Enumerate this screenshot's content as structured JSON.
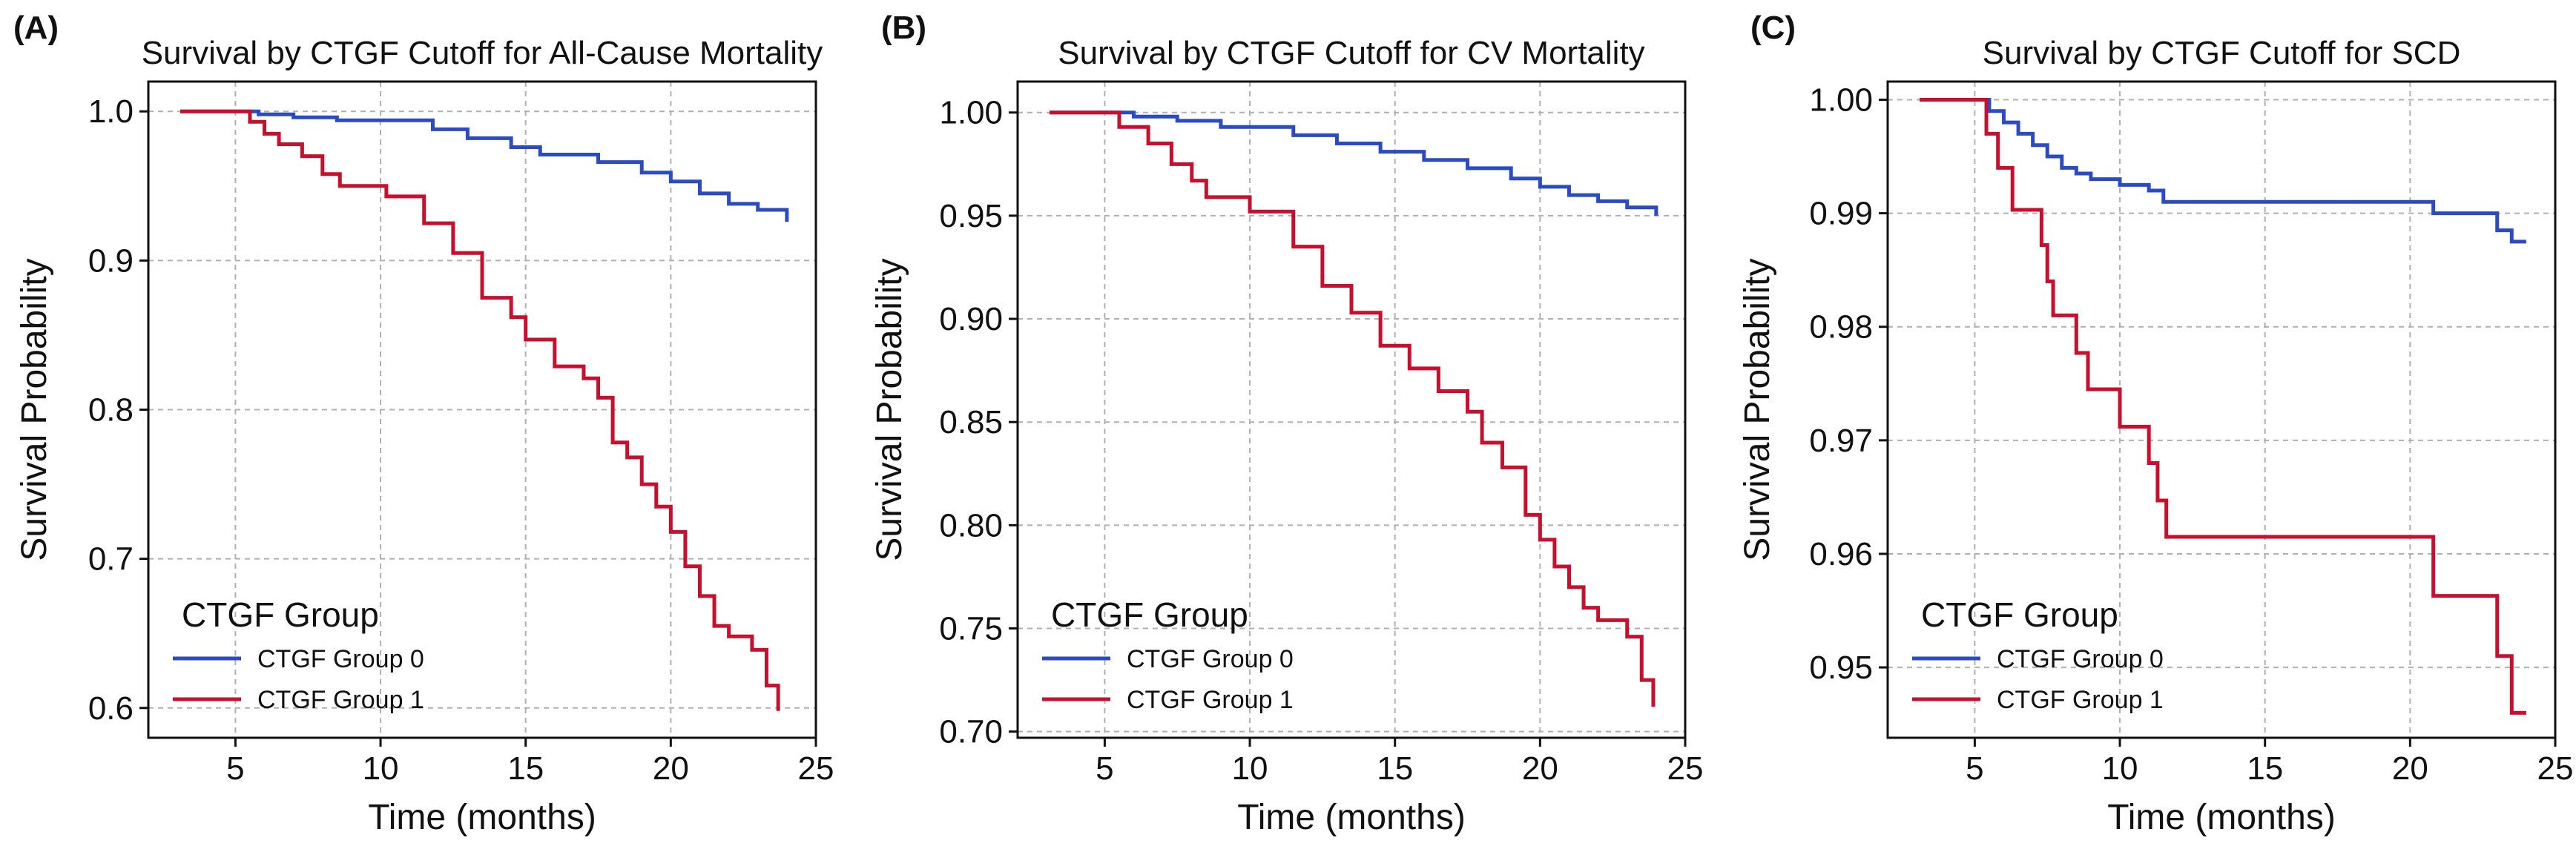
{
  "chart_data": [
    {
      "type": "line",
      "panel_label": "(A)",
      "title": "Survival by CTGF Cutoff for All-Cause Mortality",
      "xlabel": "Time (months)",
      "ylabel": "Survival Probability",
      "xlim": [
        2,
        25
      ],
      "ylim": [
        0.58,
        1.02
      ],
      "grid": true,
      "xticks": [
        5,
        10,
        15,
        20,
        25
      ],
      "xtick_labels": [
        "5",
        "10",
        "15",
        "20",
        "25"
      ],
      "yticks": [
        0.6,
        0.7,
        0.8,
        0.9,
        1.0
      ],
      "ytick_labels": [
        "0.6",
        "0.7",
        "0.8",
        "0.9",
        "1.0"
      ],
      "legend": {
        "title": "CTGF Group",
        "position": "lower-left"
      },
      "series": [
        {
          "name": "CTGF Group 0",
          "color": "#2b4bc2",
          "step": "post",
          "x": [
            3.1,
            5.8,
            7.0,
            8.5,
            11.8,
            13.0,
            14.5,
            15.5,
            17.5,
            19.0,
            20.0,
            21.0,
            22.0,
            23.0,
            24.0
          ],
          "y": [
            1.0,
            0.998,
            0.996,
            0.994,
            0.988,
            0.982,
            0.976,
            0.971,
            0.966,
            0.959,
            0.953,
            0.945,
            0.938,
            0.934,
            0.926
          ]
        },
        {
          "name": "CTGF Group 1",
          "color": "#c8102e",
          "step": "post",
          "x": [
            3.1,
            5.5,
            6.0,
            6.5,
            7.3,
            8.0,
            8.6,
            10.2,
            11.5,
            12.5,
            13.5,
            14.5,
            15.0,
            16.0,
            17.0,
            17.5,
            18.0,
            18.5,
            19.0,
            19.5,
            20.0,
            20.5,
            21.0,
            21.5,
            22.0,
            22.8,
            23.3,
            23.7
          ],
          "y": [
            1.0,
            0.993,
            0.985,
            0.978,
            0.97,
            0.958,
            0.95,
            0.943,
            0.925,
            0.905,
            0.875,
            0.862,
            0.847,
            0.829,
            0.821,
            0.808,
            0.778,
            0.768,
            0.75,
            0.735,
            0.718,
            0.695,
            0.675,
            0.655,
            0.648,
            0.639,
            0.615,
            0.598
          ]
        }
      ]
    },
    {
      "type": "line",
      "panel_label": "(B)",
      "title": "Survival by CTGF Cutoff for CV Mortality",
      "xlabel": "Time (months)",
      "ylabel": "Survival Probability",
      "xlim": [
        2,
        25
      ],
      "ylim": [
        0.697,
        1.015
      ],
      "grid": true,
      "xticks": [
        5,
        10,
        15,
        20,
        25
      ],
      "xtick_labels": [
        "5",
        "10",
        "15",
        "20",
        "25"
      ],
      "yticks": [
        0.7,
        0.75,
        0.8,
        0.85,
        0.9,
        0.95,
        1.0
      ],
      "ytick_labels": [
        "0.70",
        "0.75",
        "0.80",
        "0.85",
        "0.90",
        "0.95",
        "1.00"
      ],
      "legend": {
        "title": "CTGF Group",
        "position": "lower-left"
      },
      "series": [
        {
          "name": "CTGF Group 0",
          "color": "#2b4bc2",
          "step": "post",
          "x": [
            3.1,
            6.0,
            7.5,
            9.0,
            11.5,
            13.0,
            14.5,
            16.0,
            17.5,
            19.0,
            20.0,
            21.0,
            22.0,
            23.0,
            24.0
          ],
          "y": [
            1.0,
            0.998,
            0.996,
            0.993,
            0.989,
            0.985,
            0.981,
            0.977,
            0.973,
            0.968,
            0.964,
            0.96,
            0.957,
            0.954,
            0.95
          ]
        },
        {
          "name": "CTGF Group 1",
          "color": "#c8102e",
          "step": "post",
          "x": [
            3.1,
            5.5,
            6.5,
            7.3,
            8.0,
            8.5,
            10.0,
            11.5,
            12.5,
            13.5,
            14.5,
            15.5,
            16.5,
            17.5,
            18.0,
            18.7,
            19.5,
            20.0,
            20.5,
            21.0,
            21.5,
            22.0,
            23.0,
            23.5,
            23.9
          ],
          "y": [
            1.0,
            0.993,
            0.985,
            0.975,
            0.967,
            0.959,
            0.952,
            0.935,
            0.916,
            0.903,
            0.887,
            0.876,
            0.865,
            0.855,
            0.84,
            0.828,
            0.805,
            0.793,
            0.78,
            0.77,
            0.76,
            0.754,
            0.746,
            0.725,
            0.712
          ]
        }
      ]
    },
    {
      "type": "line",
      "panel_label": "(C)",
      "title": "Survival by CTGF Cutoff for SCD",
      "xlabel": "Time (months)",
      "ylabel": "Survival Probability",
      "xlim": [
        2,
        25
      ],
      "ylim": [
        0.9438,
        1.0016
      ],
      "grid": true,
      "xticks": [
        5,
        10,
        15,
        20,
        25
      ],
      "xtick_labels": [
        "5",
        "10",
        "15",
        "20",
        "25"
      ],
      "yticks": [
        0.95,
        0.96,
        0.97,
        0.98,
        0.99,
        1.0
      ],
      "ytick_labels": [
        "0.95",
        "0.96",
        "0.97",
        "0.98",
        "0.99",
        "1.00"
      ],
      "legend": {
        "title": "CTGF Group",
        "position": "lower-left"
      },
      "series": [
        {
          "name": "CTGF Group 0",
          "color": "#2b4bc2",
          "step": "post",
          "x": [
            3.1,
            5.5,
            6.0,
            6.5,
            7.0,
            7.5,
            8.0,
            8.5,
            9.0,
            10.0,
            11.0,
            11.5,
            20.8,
            23.0,
            23.5,
            24.0
          ],
          "y": [
            1.0,
            0.999,
            0.998,
            0.997,
            0.996,
            0.995,
            0.994,
            0.9935,
            0.993,
            0.9925,
            0.992,
            0.991,
            0.99,
            0.9885,
            0.9875,
            0.9875
          ]
        },
        {
          "name": "CTGF Group 1",
          "color": "#c8102e",
          "step": "post",
          "x": [
            3.1,
            5.4,
            5.8,
            6.3,
            7.3,
            7.5,
            7.7,
            8.5,
            8.9,
            10.0,
            11.0,
            11.3,
            11.6,
            20.8,
            23.0,
            23.5,
            24.0
          ],
          "y": [
            1.0,
            0.997,
            0.994,
            0.9903,
            0.9872,
            0.984,
            0.981,
            0.9777,
            0.9745,
            0.9712,
            0.968,
            0.9647,
            0.9615,
            0.9563,
            0.951,
            0.946,
            0.946
          ]
        }
      ]
    }
  ]
}
